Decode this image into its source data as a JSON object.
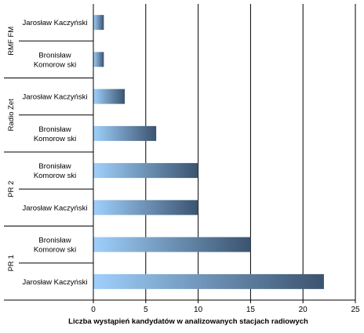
{
  "chart_data": {
    "type": "bar",
    "orientation": "horizontal",
    "title": "",
    "xlabel": "Liczba wystąpień kandydatów w analizowanych stacjach radiowych",
    "ylabel": "",
    "xlim": [
      0,
      25
    ],
    "xticks": [
      0,
      5,
      10,
      15,
      20,
      25
    ],
    "grid": "vertical",
    "legend": "none",
    "colors": {
      "bar_start": "#9fd0fb",
      "bar_end": "#3b536f",
      "grid": "#000000"
    },
    "groups": [
      {
        "label": "RMF FM",
        "bars": [
          {
            "label": [
              "Jarosław Kaczyński"
            ],
            "value": 1
          },
          {
            "label": [
              "Bronisław",
              "Komorow ski"
            ],
            "value": 1
          }
        ]
      },
      {
        "label": "Radio Zet",
        "bars": [
          {
            "label": [
              "Jarosław Kaczyński"
            ],
            "value": 3
          },
          {
            "label": [
              "Bronisław",
              "Komorow ski"
            ],
            "value": 6
          }
        ]
      },
      {
        "label": "PR 2",
        "bars": [
          {
            "label": [
              "Bronisław",
              "Komorow ski"
            ],
            "value": 10
          },
          {
            "label": [
              "Jarosław Kaczyński"
            ],
            "value": 10
          }
        ]
      },
      {
        "label": "PR 1",
        "bars": [
          {
            "label": [
              "Bronisław",
              "Komorow ski"
            ],
            "value": 15
          },
          {
            "label": [
              "Jarosław Kaczyński"
            ],
            "value": 22
          }
        ]
      }
    ]
  }
}
